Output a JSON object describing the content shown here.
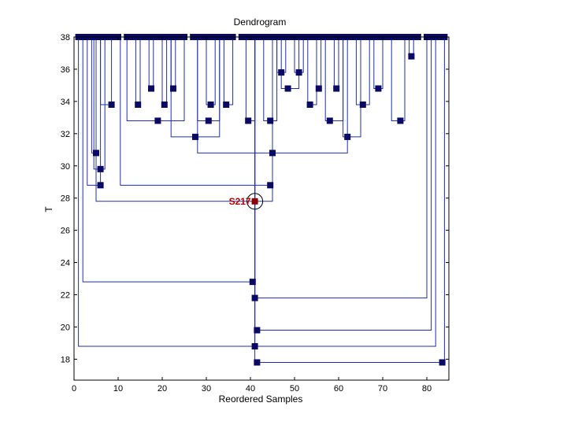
{
  "chart_data": {
    "type": "dendrogram",
    "title": "Dendrogram",
    "xlabel": "Reordered Samples",
    "ylabel": "T",
    "xlim": [
      0,
      85
    ],
    "ylim": [
      16.7,
      38
    ],
    "xticks": [
      0,
      10,
      20,
      30,
      40,
      50,
      60,
      70,
      80
    ],
    "yticks": [
      18,
      20,
      22,
      24,
      26,
      28,
      30,
      32,
      34,
      36,
      38
    ],
    "grid": false,
    "colors": {
      "line": "#1f2fb0",
      "node": "#0a0a64",
      "highlight": "#8b0000",
      "label": "#c00000"
    },
    "leaves": [
      1,
      2,
      3,
      4,
      5,
      6,
      7,
      8,
      9,
      10,
      12,
      13,
      14,
      15,
      16,
      17,
      18,
      19,
      20,
      21,
      22,
      23,
      24,
      25,
      27,
      28,
      29,
      30,
      31,
      32,
      33,
      34,
      35,
      36,
      38,
      39,
      40,
      41,
      42,
      43,
      44,
      45,
      46,
      47,
      48,
      49,
      50,
      51,
      52,
      53,
      54,
      55,
      56,
      57,
      58,
      59,
      60,
      61,
      62,
      63,
      64,
      65,
      66,
      67,
      68,
      69,
      70,
      71,
      72,
      73,
      74,
      75,
      76,
      77,
      78,
      80,
      81,
      82,
      83,
      84
    ],
    "merges": [
      {
        "id": "a1",
        "left": 4,
        "right": 5,
        "height": 30.8
      },
      {
        "id": "a2",
        "left": 4.5,
        "right": 7,
        "height": 29.8
      },
      {
        "id": "a3",
        "left": 6,
        "right": 8.5,
        "height": 33.8
      },
      {
        "id": "a4",
        "left": 3,
        "right": 6,
        "height": 28.8
      },
      {
        "id": "b1",
        "left": 14,
        "right": 15,
        "height": 33.8
      },
      {
        "id": "b2",
        "left": 17,
        "right": 18,
        "height": 34.8
      },
      {
        "id": "b3",
        "left": 20,
        "right": 21,
        "height": 33.8
      },
      {
        "id": "b4",
        "left": 22,
        "right": 23,
        "height": 34.8
      },
      {
        "id": "b5",
        "left": 12,
        "right": 25,
        "height": 32.8
      },
      {
        "id": "c1",
        "left": 30,
        "right": 32,
        "height": 33.8
      },
      {
        "id": "c2",
        "left": 34,
        "right": 36,
        "height": 33.8
      },
      {
        "id": "c3",
        "left": 28,
        "right": 33,
        "height": 32.8
      },
      {
        "id": "c4",
        "left": 39,
        "right": 41,
        "height": 32.8
      },
      {
        "id": "c5",
        "left": 43,
        "right": 46,
        "height": 32.8
      },
      {
        "id": "c6",
        "left": 22,
        "right": 33,
        "height": 31.8
      },
      {
        "id": "d1",
        "left": 46,
        "right": 48,
        "height": 35.8
      },
      {
        "id": "d2",
        "left": 50,
        "right": 52,
        "height": 35.8
      },
      {
        "id": "d3",
        "left": 47,
        "right": 51,
        "height": 34.8
      },
      {
        "id": "d4",
        "left": 55,
        "right": 56,
        "height": 34.8
      },
      {
        "id": "d5",
        "left": 59,
        "right": 60,
        "height": 34.8
      },
      {
        "id": "d6",
        "left": 53,
        "right": 55,
        "height": 33.8
      },
      {
        "id": "d7",
        "left": 57,
        "right": 61,
        "height": 32.8
      },
      {
        "id": "e1",
        "left": 64,
        "right": 67,
        "height": 33.8
      },
      {
        "id": "e2",
        "left": 68,
        "right": 70,
        "height": 34.8
      },
      {
        "id": "e3",
        "left": 72,
        "right": 75,
        "height": 32.8
      },
      {
        "id": "e4",
        "left": 76,
        "right": 77,
        "height": 36.8
      },
      {
        "id": "e5",
        "left": 61,
        "right": 65,
        "height": 31.8
      },
      {
        "id": "f1",
        "left": 28,
        "right": 62,
        "height": 30.8
      },
      {
        "id": "f2",
        "left": 10.5,
        "right": 45,
        "height": 28.8
      },
      {
        "id": "f3",
        "left": 5,
        "right": 45,
        "height": 27.8
      },
      {
        "id": "f4",
        "left": 2,
        "right": 41,
        "height": 22.8
      },
      {
        "id": "f5",
        "left": 41,
        "right": 80,
        "height": 21.8
      },
      {
        "id": "f6",
        "left": 41,
        "right": 81,
        "height": 19.8
      },
      {
        "id": "f7",
        "left": 1,
        "right": 41,
        "height": 18.8
      },
      {
        "id": "f8",
        "left": 41,
        "right": 82,
        "height": 18.8
      },
      {
        "id": "f9",
        "left": 41,
        "right": 84,
        "height": 17.8
      }
    ],
    "nodes": [
      {
        "x": 5,
        "y": 30.8
      },
      {
        "x": 6,
        "y": 29.8
      },
      {
        "x": 8.5,
        "y": 33.8
      },
      {
        "x": 6,
        "y": 28.8
      },
      {
        "x": 14.5,
        "y": 33.8
      },
      {
        "x": 17.5,
        "y": 34.8
      },
      {
        "x": 19,
        "y": 32.8
      },
      {
        "x": 20.5,
        "y": 33.8
      },
      {
        "x": 22.5,
        "y": 34.8
      },
      {
        "x": 27.5,
        "y": 31.8
      },
      {
        "x": 31,
        "y": 33.8
      },
      {
        "x": 30.5,
        "y": 32.8
      },
      {
        "x": 34.5,
        "y": 33.8
      },
      {
        "x": 39.5,
        "y": 32.8
      },
      {
        "x": 44.5,
        "y": 32.8
      },
      {
        "x": 44.5,
        "y": 28.8
      },
      {
        "x": 45,
        "y": 30.8
      },
      {
        "x": 47,
        "y": 35.8
      },
      {
        "x": 51,
        "y": 35.8
      },
      {
        "x": 48.5,
        "y": 34.8
      },
      {
        "x": 53.5,
        "y": 33.8
      },
      {
        "x": 55.5,
        "y": 34.8
      },
      {
        "x": 58,
        "y": 32.8
      },
      {
        "x": 59.5,
        "y": 34.8
      },
      {
        "x": 62,
        "y": 31.8
      },
      {
        "x": 65.5,
        "y": 33.8
      },
      {
        "x": 69,
        "y": 34.8
      },
      {
        "x": 74,
        "y": 32.8
      },
      {
        "x": 76.5,
        "y": 36.8
      },
      {
        "x": 40.5,
        "y": 22.8
      },
      {
        "x": 41,
        "y": 21.8
      },
      {
        "x": 41.5,
        "y": 19.8
      },
      {
        "x": 41,
        "y": 18.8
      },
      {
        "x": 41.5,
        "y": 17.8
      },
      {
        "x": 83.5,
        "y": 17.8
      }
    ],
    "highlight": {
      "label": "S217",
      "x": 41,
      "y": 27.8
    }
  }
}
